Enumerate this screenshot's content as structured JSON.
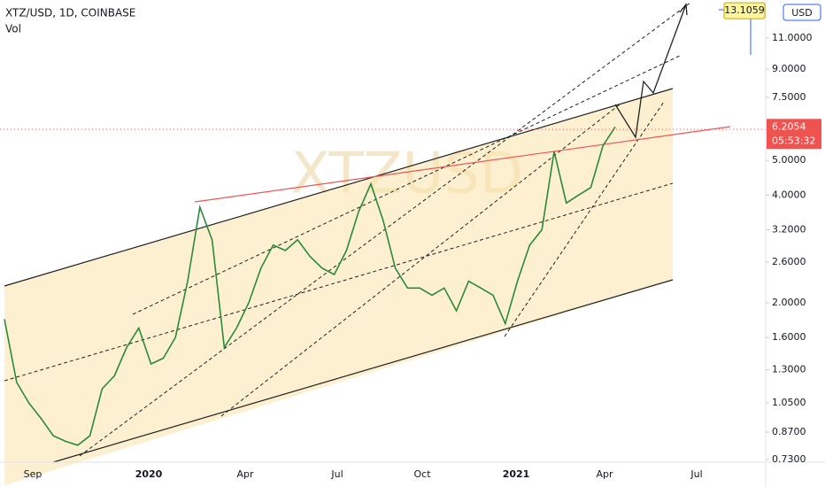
{
  "chart_data": {
    "type": "line",
    "title": "XTZ/USD, 1D, COINBASE",
    "subtitle": "Vol",
    "watermark": "XTZUSD",
    "log_scale": true,
    "color": "#2a8a3a",
    "ylim": [
      0.717,
      14.04
    ],
    "yticks": [
      {
        "value": 0.73,
        "label": "0.7300"
      },
      {
        "value": 0.87,
        "label": "0.8700"
      },
      {
        "value": 1.05,
        "label": "1.0500"
      },
      {
        "value": 1.3,
        "label": "1.3000"
      },
      {
        "value": 1.6,
        "label": "1.6000"
      },
      {
        "value": 2.0,
        "label": "2.0000"
      },
      {
        "value": 2.6,
        "label": "2.6000"
      },
      {
        "value": 3.2,
        "label": "3.2000"
      },
      {
        "value": 4.0,
        "label": "4.0000"
      },
      {
        "value": 5.0,
        "label": "5.0000"
      },
      {
        "value": 7.5,
        "label": "7.5000"
      },
      {
        "value": 9.0,
        "label": "9.0000"
      },
      {
        "value": 11.0,
        "label": "11.0000"
      }
    ],
    "xticks": [
      "Sep",
      "2020",
      "Apr",
      "Jul",
      "Oct",
      "2021",
      "Apr",
      "Jul"
    ],
    "values": [
      1.8,
      1.2,
      1.05,
      0.95,
      0.85,
      0.82,
      0.8,
      0.85,
      1.15,
      1.25,
      1.5,
      1.7,
      1.35,
      1.4,
      1.6,
      2.3,
      3.7,
      3.0,
      1.5,
      1.7,
      2.0,
      2.5,
      2.9,
      2.8,
      3.0,
      2.7,
      2.5,
      2.4,
      2.8,
      3.6,
      4.3,
      3.4,
      2.5,
      2.2,
      2.2,
      2.1,
      2.2,
      1.9,
      2.3,
      2.2,
      2.1,
      1.75,
      2.3,
      2.9,
      3.2,
      5.3,
      3.8,
      4.0,
      4.2,
      5.5,
      6.2054
    ],
    "last_price": {
      "value": 6.2054,
      "label": "6.2054"
    },
    "countdown": "05:53:32",
    "target": {
      "value": 13.1059,
      "label": "13.1059"
    },
    "currency": "USD"
  }
}
